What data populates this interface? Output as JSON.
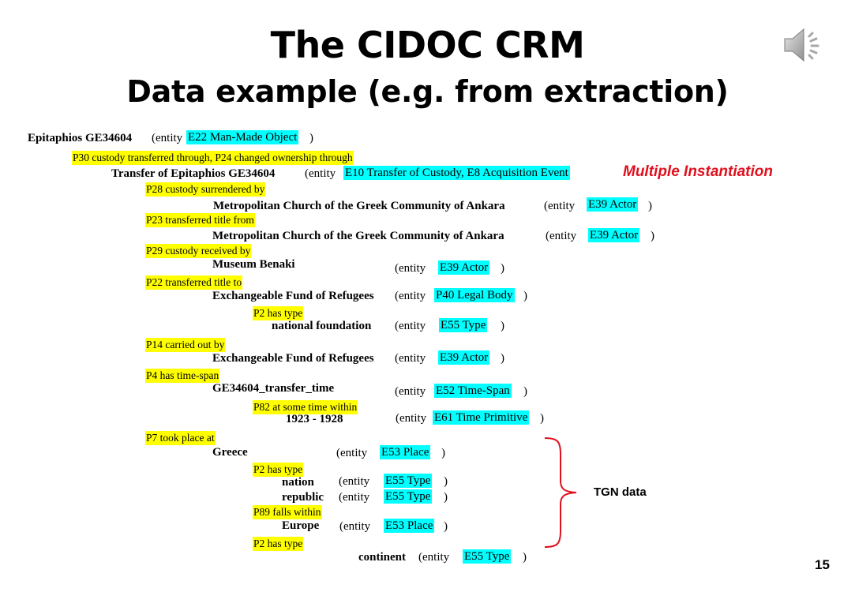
{
  "title": "The CIDOC CRM",
  "subtitle": "Data example (e.g. from extraction)",
  "speaker_icon": "speaker-icon",
  "annotation_multiple": "Multiple Instantiation",
  "tgn_label": "TGN data",
  "page_number": "15",
  "entity_open": "(entity",
  "close_paren": ")",
  "lines": {
    "epitaphios": "Epitaphios GE34604",
    "e22": "E22 Man-Made Object",
    "p30": "P30 custody transferred through, P24 changed ownership through",
    "transfer": "Transfer of Epitaphios GE34604",
    "e10": "E10 Transfer of Custody,  E8 Acquisition Event",
    "p28": "P28 custody surrendered by",
    "metro1": "Metropolitan Church of the Greek Community of Ankara",
    "e39a": "E39 Actor",
    "p23": "P23 transferred title from",
    "metro2": "Metropolitan Church of the Greek Community of Ankara",
    "e39b": "E39 Actor",
    "p29": "P29 custody received by",
    "benaki": "Museum Benaki",
    "e39c": "E39 Actor",
    "p22": "P22 transferred title to",
    "fund1": "Exchangeable Fund of Refugees",
    "p40": "P40 Legal Body",
    "p2a": "P2 has type",
    "natfound": "national foundation",
    "e55a": "E55 Type",
    "p14": "P14 carried out by",
    "fund2": "Exchangeable Fund of Refugees",
    "e39d": "E39 Actor",
    "p4": "P4 has time-span",
    "transfer_time": "GE34604_transfer_time",
    "e52": "E52 Time-Span",
    "p82": "P82 at some time  within",
    "years": "1923 - 1928",
    "e61": "E61 Time Primitive",
    "p7": "P7 took place at",
    "greece": "Greece",
    "e53a": "E53 Place",
    "p2b": "P2 has type",
    "nation": "nation",
    "e55b": "E55 Type",
    "republic": "republic",
    "e55c": "E55 Type",
    "p89": "P89 falls within",
    "europe": "Europe",
    "e53b": "E53 Place",
    "p2c": "P2 has type",
    "continent": "continent",
    "e55d": "E55 Type"
  },
  "colors": {
    "property_highlight": "#ffff00",
    "class_highlight": "#00ffff",
    "annotation_red": "#e0101e"
  }
}
